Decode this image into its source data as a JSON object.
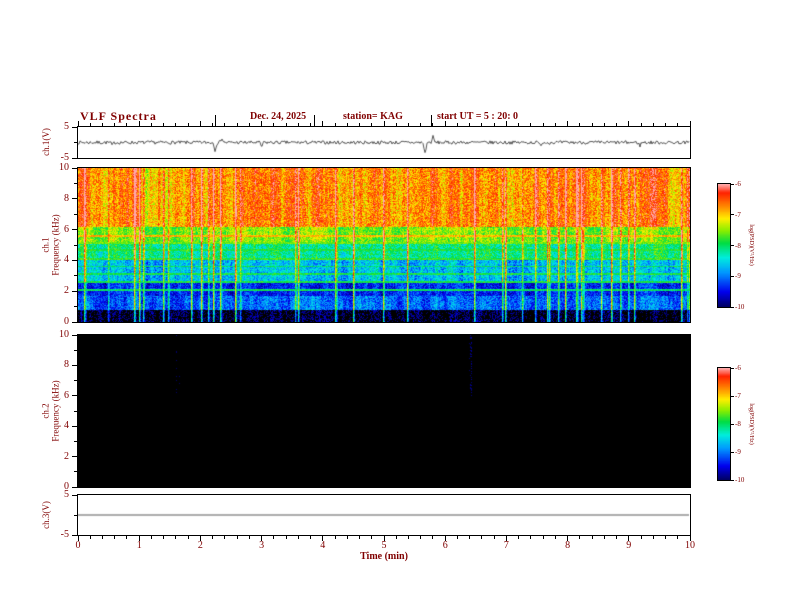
{
  "header": {
    "title": "VLF Spectra",
    "date": "Dec. 24, 2025",
    "station": "station= KAG",
    "start_ut": "start UT = 5 : 20: 0"
  },
  "axes": {
    "x": {
      "label": "Time (min)",
      "min": 0,
      "max": 10,
      "ticks": [
        0,
        1,
        2,
        3,
        4,
        5,
        6,
        7,
        8,
        9,
        10
      ],
      "minor_step": 0.2
    },
    "wave1": {
      "label": "ch.1(V)",
      "min": -5,
      "max": 5,
      "ticks": [
        5,
        -5
      ],
      "unlabeled_ticks": [
        0
      ]
    },
    "spec1": {
      "label_ch": "ch.1",
      "label_freq": "Frequency (kHz)",
      "min": 0,
      "max": 10,
      "ticks": [
        10,
        8,
        6,
        4,
        2,
        0
      ],
      "minor_ticks": [
        1,
        3,
        5,
        7,
        9
      ]
    },
    "spec2": {
      "label_ch": "ch.2",
      "label_freq": "Frequency (kHz)",
      "min": 0,
      "max": 10,
      "ticks": [
        10,
        8,
        6,
        4,
        2,
        0
      ],
      "minor_ticks": [
        1,
        3,
        5,
        7,
        9
      ]
    },
    "wave3": {
      "label": "ch.3(V)",
      "min": -5,
      "max": 5,
      "ticks": [
        5,
        -5
      ],
      "unlabeled_ticks": [
        0
      ]
    }
  },
  "colorbar": {
    "label": "log(PSD)(V²/Hz)",
    "min": -10,
    "max": -6,
    "ticks": [
      -6,
      -7,
      -8,
      -9,
      -10
    ],
    "stops": [
      {
        "t": 0.0,
        "color": "#000066"
      },
      {
        "t": 0.12,
        "color": "#0000ee"
      },
      {
        "t": 0.28,
        "color": "#0099ff"
      },
      {
        "t": 0.4,
        "color": "#00eedd"
      },
      {
        "t": 0.52,
        "color": "#00dd44"
      },
      {
        "t": 0.62,
        "color": "#88ee00"
      },
      {
        "t": 0.72,
        "color": "#ffee00"
      },
      {
        "t": 0.82,
        "color": "#ff8800"
      },
      {
        "t": 0.93,
        "color": "#ff2200"
      },
      {
        "t": 1.0,
        "color": "#ffaaaa"
      }
    ]
  },
  "chart_data": [
    {
      "type": "line",
      "panel": "ch1_waveform",
      "ylabel": "ch.1(V)",
      "xlim": [
        0,
        10
      ],
      "ylim": [
        -5,
        5
      ],
      "noise_amplitude_v": 0.55,
      "spikes": [
        {
          "t_min": 0.56,
          "v": -0.9
        },
        {
          "t_min": 2.24,
          "v": -2.4
        },
        {
          "t_min": 2.35,
          "v": 1.5
        },
        {
          "t_min": 3.0,
          "v": -1.3
        },
        {
          "t_min": 5.67,
          "v": -3.6
        },
        {
          "t_min": 5.8,
          "v": 1.8
        },
        {
          "t_min": 7.55,
          "v": -0.9
        },
        {
          "t_min": 9.18,
          "v": -1.0
        }
      ],
      "event_markers_min": [
        2.24,
        3.87,
        5.78
      ]
    },
    {
      "type": "heatmap",
      "panel": "ch1_spectrogram",
      "ylabel": "ch.1 Frequency (kHz)",
      "xlim": [
        0,
        10
      ],
      "ylim": [
        0,
        10
      ],
      "zlim": [
        -10,
        -6
      ],
      "zlabel": "log(PSD)(V²/Hz)",
      "bands": [
        {
          "f_lo": 0.0,
          "f_hi": 0.8,
          "psd": -10.1,
          "noise": 0.45
        },
        {
          "f_lo": 0.8,
          "f_hi": 1.7,
          "psd": -9.1,
          "noise": 0.5
        },
        {
          "f_lo": 1.7,
          "f_hi": 2.6,
          "psd": -9.4,
          "noise": 0.45
        },
        {
          "f_lo": 2.6,
          "f_hi": 4.0,
          "psd": -8.7,
          "noise": 0.55
        },
        {
          "f_lo": 4.0,
          "f_hi": 5.2,
          "psd": -8.15,
          "noise": 0.5
        },
        {
          "f_lo": 5.2,
          "f_hi": 6.2,
          "psd": -7.55,
          "noise": 0.45
        },
        {
          "f_lo": 6.2,
          "f_hi": 10.0,
          "psd": -6.75,
          "noise": 0.55
        }
      ],
      "tone_lines": [
        {
          "f": 2.1,
          "psd": -8.0
        },
        {
          "f": 2.6,
          "psd": -7.9
        },
        {
          "f": 3.1,
          "psd": -7.9
        },
        {
          "f": 3.6,
          "psd": -8.0
        },
        {
          "f": 4.1,
          "psd": -7.8
        },
        {
          "f": 4.65,
          "psd": -7.9
        },
        {
          "f": 5.15,
          "psd": -7.6
        },
        {
          "f": 5.6,
          "psd": -6.9
        }
      ],
      "impulses_per_min": 5,
      "impulse_boost": 1.5
    },
    {
      "type": "heatmap",
      "panel": "ch2_spectrogram",
      "ylabel": "ch.2 Frequency (kHz)",
      "xlim": [
        0,
        10
      ],
      "ylim": [
        0,
        10
      ],
      "zlim": [
        -10,
        -6
      ],
      "zlabel": "log(PSD)(V²/Hz)",
      "bands": [
        {
          "f_lo": 0.0,
          "f_hi": 10.0,
          "psd": -10.7,
          "noise": 0.3
        }
      ],
      "tone_lines": [],
      "impulses_per_min": 0,
      "impulse_boost": 0
    },
    {
      "type": "line",
      "panel": "ch3_waveform",
      "ylabel": "ch.3(V)",
      "xlim": [
        0,
        10
      ],
      "ylim": [
        -5,
        5
      ],
      "noise_amplitude_v": 0.0,
      "spikes": []
    }
  ]
}
